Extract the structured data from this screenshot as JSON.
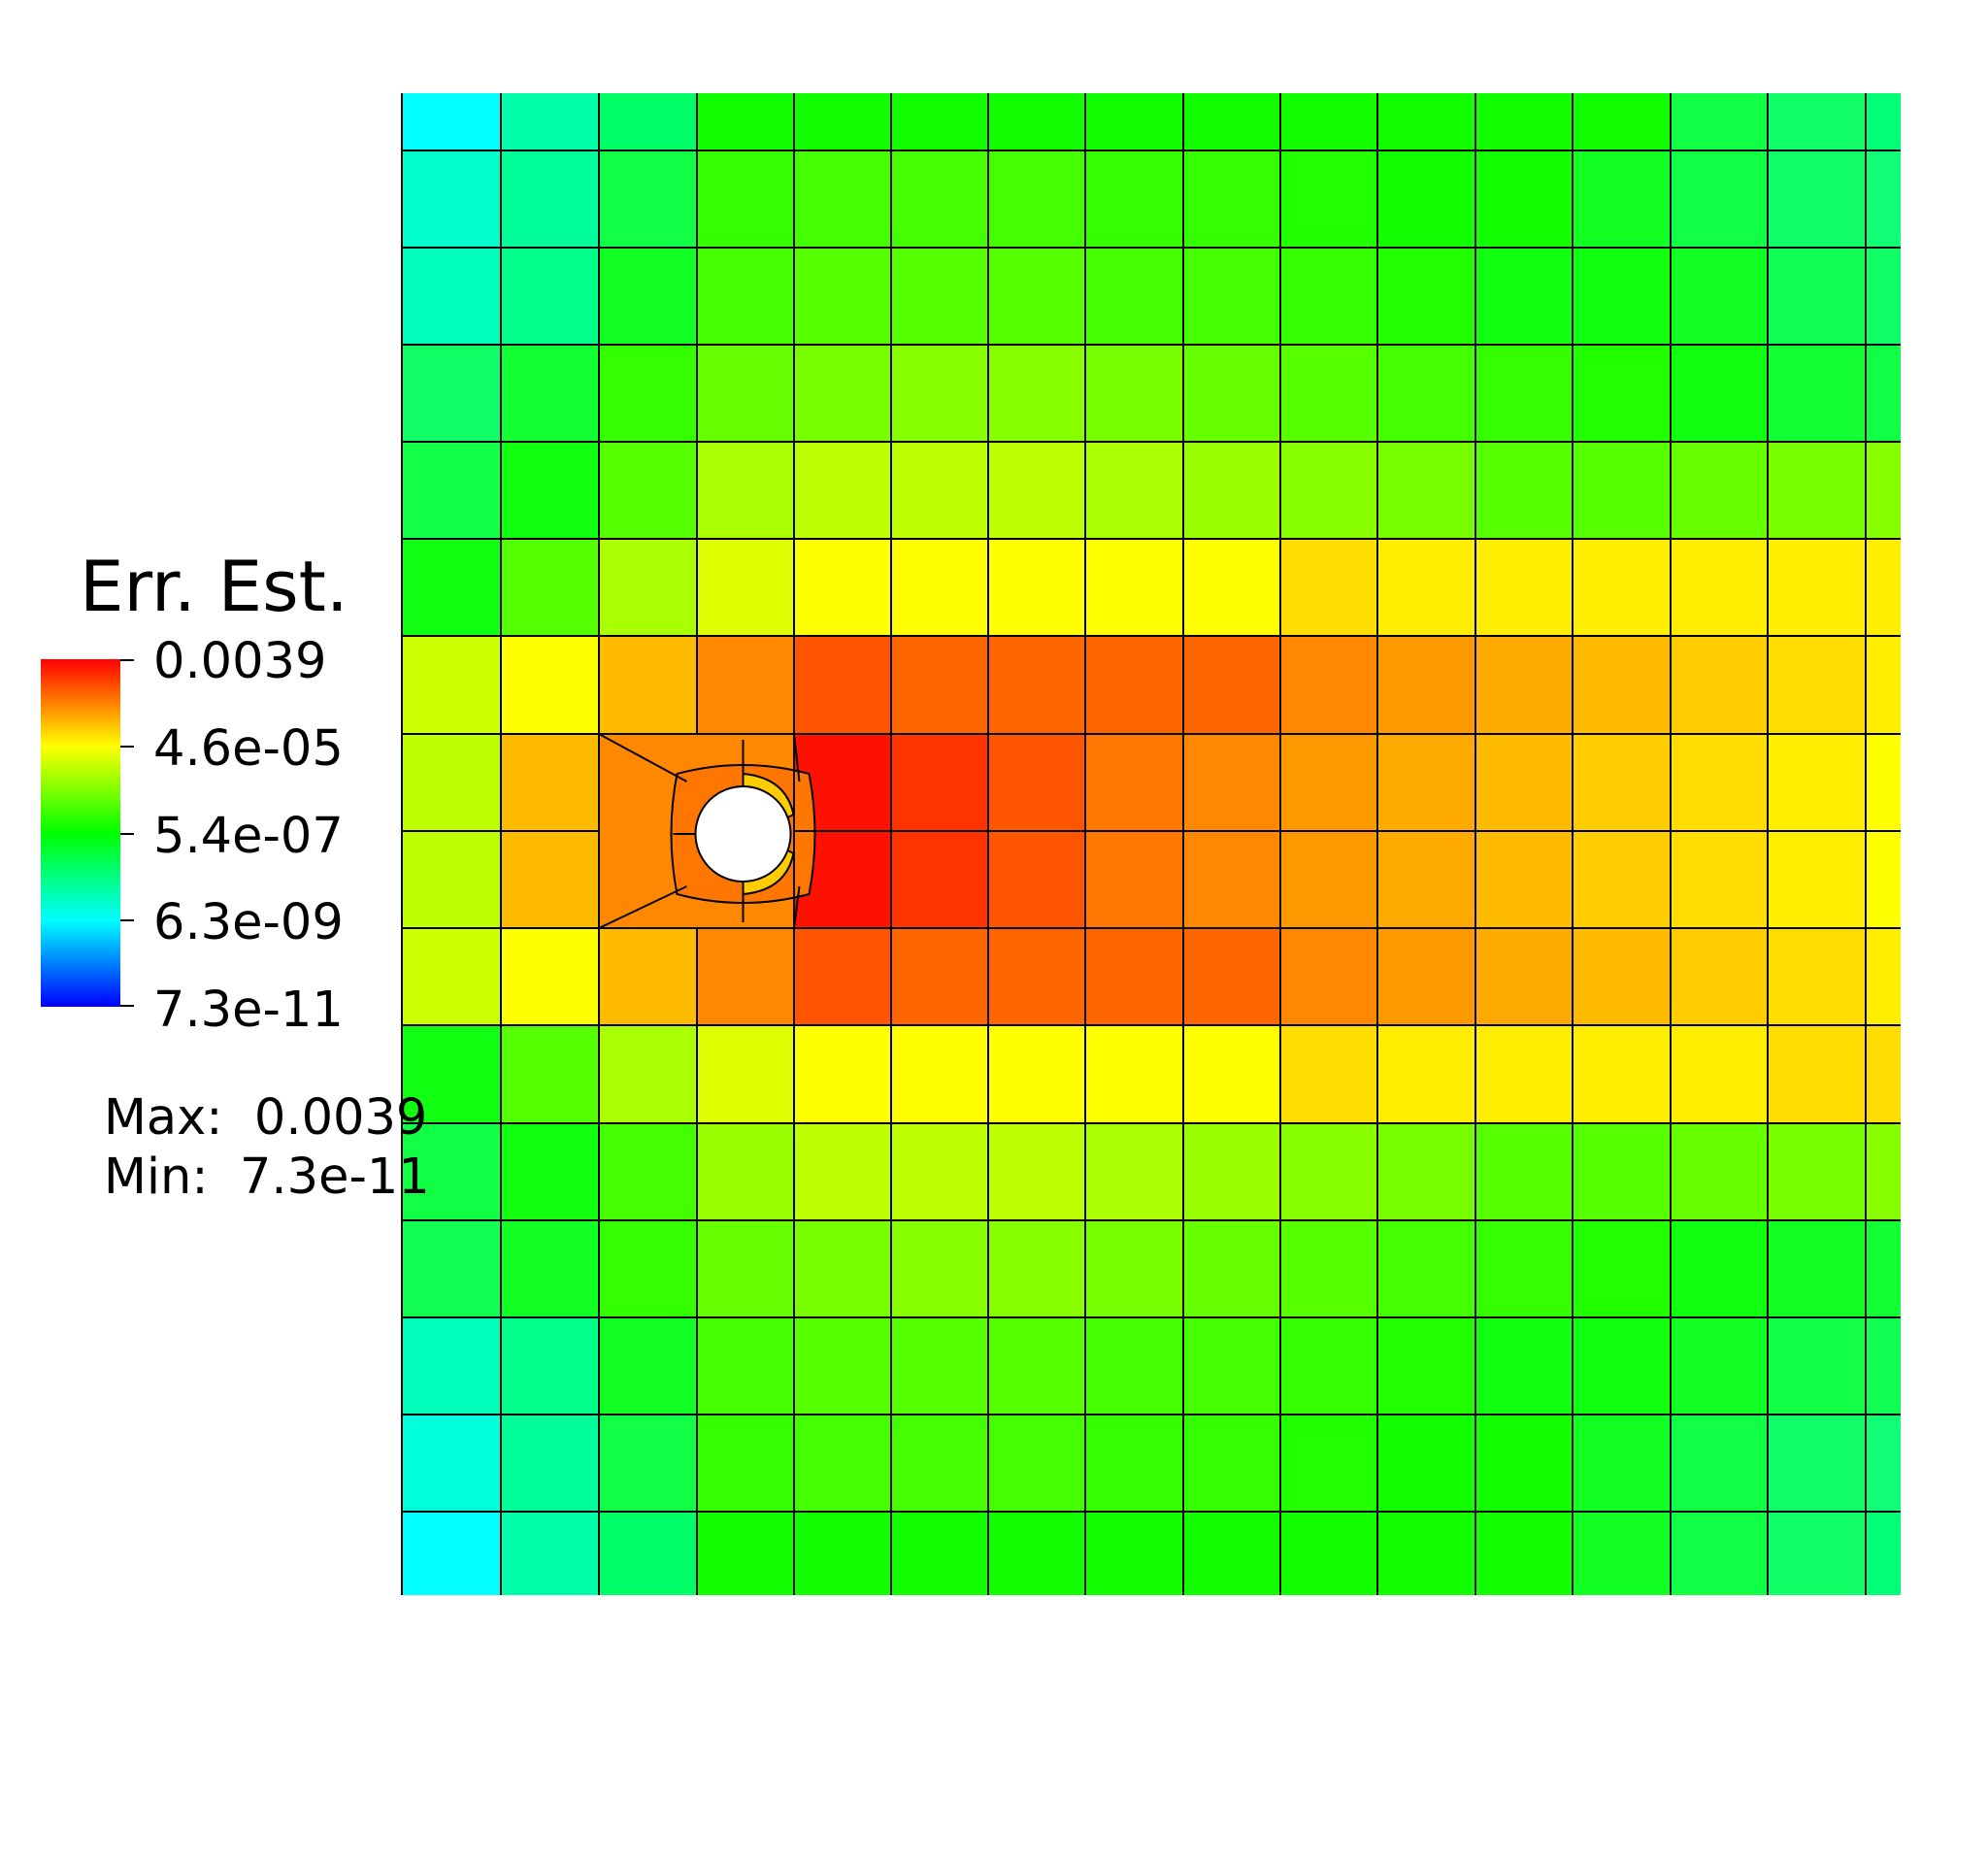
{
  "chart_data": {
    "type": "heatmap",
    "title": "",
    "xlabel": "",
    "ylabel": "",
    "field_name": "Err. Est.",
    "scale": "log",
    "colormap": "rainbow (blue-cyan-green-yellow-red)",
    "colorbar_ticks": [
      "0.0039",
      "4.6e-05",
      "5.4e-07",
      "6.3e-09",
      "7.3e-11"
    ],
    "max_label": "Max:",
    "max_value": "0.0039",
    "min_label": "Min:",
    "min_value": "7.3e-11",
    "grid_columns": 16,
    "grid_rows": 16,
    "cell_lines": "black",
    "hole": {
      "column": 3,
      "row": 8
    },
    "cell_colors": [
      [
        "#00ffff",
        "#00ffaa",
        "#00ff66",
        "#11ff00",
        "#11ff00",
        "#11ff00",
        "#11ff00",
        "#11ff00",
        "#11ff00",
        "#11ff00",
        "#11ff00",
        "#11ff00",
        "#11ff00",
        "#11ff44",
        "#11ff66",
        "#00ff77"
      ],
      [
        "#00ffcc",
        "#00ff99",
        "#11ff44",
        "#33ff00",
        "#44ff00",
        "#44ff00",
        "#44ff00",
        "#33ff00",
        "#33ff00",
        "#22ff00",
        "#11ff00",
        "#11ff00",
        "#11ff22",
        "#11ff44",
        "#11ff66",
        "#11ff77"
      ],
      [
        "#00ffbb",
        "#00ff88",
        "#11ff22",
        "#44ff00",
        "#55ff00",
        "#55ff00",
        "#55ff00",
        "#44ff00",
        "#44ff00",
        "#33ff00",
        "#22ff00",
        "#11ff11",
        "#11ff11",
        "#11ff22",
        "#11ff55",
        "#11ff66"
      ],
      [
        "#11ff66",
        "#11ff33",
        "#33ff00",
        "#66ff00",
        "#77ff00",
        "#88ff00",
        "#88ff00",
        "#77ff00",
        "#66ff00",
        "#55ff00",
        "#44ff00",
        "#33ff00",
        "#22ff00",
        "#11ff11",
        "#11ff33",
        "#11ff44"
      ],
      [
        "#11ff44",
        "#11ff11",
        "#55ff00",
        "#aaff00",
        "#bbff00",
        "#bbff00",
        "#bbff00",
        "#aaff00",
        "#99ff00",
        "#88ff00",
        "#77ff00",
        "#55ff00",
        "#55ff00",
        "#66ff00",
        "#77ff00",
        "#88ff00"
      ],
      [
        "#11ff11",
        "#55ff00",
        "#aaff00",
        "#ddff00",
        "#ffff00",
        "#ffff00",
        "#ffff00",
        "#ffff00",
        "#ffff00",
        "#ffdd00",
        "#ffee00",
        "#ffee00",
        "#ffee00",
        "#ffee00",
        "#ffee00",
        "#ffee00"
      ],
      [
        "#ccff00",
        "#ffff00",
        "#ffbb00",
        "#ff8800",
        "#ff5500",
        "#ff6600",
        "#ff6600",
        "#ff6600",
        "#ff6600",
        "#ff8800",
        "#ff9900",
        "#ffaa00",
        "#ffbb00",
        "#ffcc00",
        "#ffdd00",
        "#ffee00"
      ],
      [
        "#bbff00",
        "#ffbb00",
        "#ff8800",
        "#ff7700",
        "#ff1100",
        "#ff3300",
        "#ff5500",
        "#ff7700",
        "#ff8800",
        "#ff9900",
        "#ffaa00",
        "#ffbb00",
        "#ffcc00",
        "#ffdd00",
        "#ffee00",
        "#ffff00"
      ],
      [
        "#bbff00",
        "#ffbb00",
        "#ff8800",
        "#ff7700",
        "#ff1100",
        "#ff3300",
        "#ff5500",
        "#ff7700",
        "#ff8800",
        "#ff9900",
        "#ffaa00",
        "#ffbb00",
        "#ffcc00",
        "#ffdd00",
        "#ffee00",
        "#ffff00"
      ],
      [
        "#ccff00",
        "#ffff00",
        "#ffbb00",
        "#ff8800",
        "#ff5500",
        "#ff6600",
        "#ff6600",
        "#ff6600",
        "#ff6600",
        "#ff8800",
        "#ff9900",
        "#ffaa00",
        "#ffbb00",
        "#ffcc00",
        "#ffdd00",
        "#ffee00"
      ],
      [
        "#11ff11",
        "#55ff00",
        "#aaff00",
        "#ddff00",
        "#ffff00",
        "#ffff00",
        "#ffff00",
        "#ffff00",
        "#ffff00",
        "#ffdd00",
        "#ffee00",
        "#ffee00",
        "#ffee00",
        "#ffee00",
        "#ffdd00",
        "#ffdd00"
      ],
      [
        "#11ff44",
        "#11ff11",
        "#44ff00",
        "#99ff00",
        "#bbff00",
        "#bbff00",
        "#bbff00",
        "#aaff00",
        "#99ff00",
        "#88ff00",
        "#77ff00",
        "#55ff00",
        "#55ff00",
        "#66ff00",
        "#77ff00",
        "#88ff00"
      ],
      [
        "#11ff55",
        "#11ff22",
        "#33ff00",
        "#66ff00",
        "#77ff00",
        "#88ff00",
        "#88ff00",
        "#77ff00",
        "#66ff00",
        "#55ff00",
        "#44ff00",
        "#33ff00",
        "#22ff00",
        "#11ff11",
        "#11ff22",
        "#11ff33"
      ],
      [
        "#00ffbb",
        "#00ff88",
        "#11ff22",
        "#44ff00",
        "#55ff00",
        "#55ff00",
        "#55ff00",
        "#44ff00",
        "#44ff00",
        "#33ff00",
        "#22ff00",
        "#11ff11",
        "#11ff11",
        "#11ff22",
        "#11ff44",
        "#11ff55"
      ],
      [
        "#00ffdd",
        "#00ff99",
        "#11ff44",
        "#33ff00",
        "#44ff00",
        "#44ff00",
        "#44ff00",
        "#33ff00",
        "#33ff00",
        "#22ff00",
        "#11ff00",
        "#11ff00",
        "#11ff22",
        "#11ff44",
        "#11ff66",
        "#11ff77"
      ],
      [
        "#00ffff",
        "#00ffaa",
        "#00ff66",
        "#11ff00",
        "#11ff00",
        "#11ff00",
        "#11ff00",
        "#11ff00",
        "#11ff00",
        "#11ff00",
        "#11ff00",
        "#11ff00",
        "#11ff22",
        "#11ff44",
        "#11ff66",
        "#00ff77"
      ]
    ],
    "hole_ring_colors": {
      "outer": "#ff8800",
      "inner_left": "#ff7700",
      "inner_top_right": "#ffcc00",
      "inner_bottom_right": "#ffcc00"
    }
  }
}
